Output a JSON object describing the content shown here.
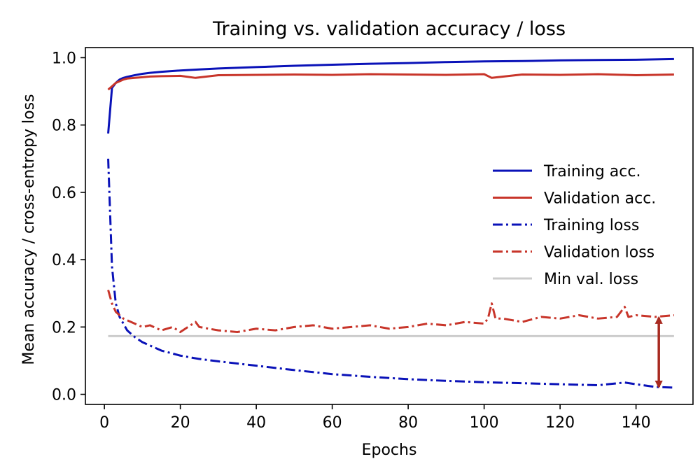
{
  "chart_data": {
    "type": "line",
    "title": "Training vs. validation accuracy / loss",
    "xlabel": "Epochs",
    "ylabel": "Mean accuracy / cross-entropy loss",
    "xlim": [
      -5,
      155
    ],
    "ylim": [
      -0.03,
      1.03
    ],
    "x_ticks": [
      0,
      20,
      40,
      60,
      80,
      100,
      120,
      140
    ],
    "y_ticks": [
      0.0,
      0.2,
      0.4,
      0.6,
      0.8,
      1.0
    ],
    "x_tick_labels": [
      "0",
      "20",
      "40",
      "60",
      "80",
      "100",
      "120",
      "140"
    ],
    "y_tick_labels": [
      "0.0",
      "0.2",
      "0.4",
      "0.6",
      "0.8",
      "1.0"
    ],
    "grid": false,
    "legend_position": "center-right",
    "colors": {
      "training": "#0a12b8",
      "validation": "#c8352a",
      "min_line": "#cccccc",
      "arrow": "#a82a20"
    },
    "series": [
      {
        "name": "Training acc.",
        "style": "solid",
        "color": "#0a12b8",
        "x": [
          1,
          2,
          3,
          4,
          5,
          6,
          8,
          10,
          12,
          15,
          20,
          25,
          30,
          40,
          50,
          60,
          70,
          80,
          90,
          100,
          110,
          120,
          130,
          140,
          145,
          150
        ],
        "y": [
          0.775,
          0.91,
          0.925,
          0.935,
          0.94,
          0.943,
          0.948,
          0.952,
          0.955,
          0.958,
          0.962,
          0.965,
          0.968,
          0.972,
          0.976,
          0.979,
          0.982,
          0.984,
          0.987,
          0.989,
          0.99,
          0.992,
          0.993,
          0.994,
          0.995,
          0.996
        ]
      },
      {
        "name": "Validation acc.",
        "style": "solid",
        "color": "#c8352a",
        "x": [
          1,
          2,
          3,
          4,
          5,
          6,
          8,
          10,
          12,
          15,
          20,
          24,
          30,
          40,
          50,
          60,
          70,
          80,
          90,
          100,
          102,
          110,
          120,
          130,
          140,
          150
        ],
        "y": [
          0.905,
          0.915,
          0.925,
          0.93,
          0.935,
          0.938,
          0.94,
          0.942,
          0.944,
          0.945,
          0.946,
          0.94,
          0.948,
          0.949,
          0.95,
          0.949,
          0.951,
          0.95,
          0.949,
          0.951,
          0.94,
          0.95,
          0.949,
          0.951,
          0.948,
          0.95
        ]
      },
      {
        "name": "Training loss",
        "style": "dashdot",
        "color": "#0a12b8",
        "x": [
          1,
          2,
          3,
          4,
          5,
          6,
          8,
          10,
          12,
          15,
          20,
          25,
          30,
          40,
          50,
          60,
          70,
          80,
          90,
          100,
          110,
          120,
          130,
          137,
          140,
          145,
          150
        ],
        "y": [
          0.7,
          0.38,
          0.27,
          0.23,
          0.21,
          0.19,
          0.17,
          0.155,
          0.145,
          0.13,
          0.115,
          0.105,
          0.098,
          0.085,
          0.072,
          0.06,
          0.052,
          0.045,
          0.04,
          0.036,
          0.033,
          0.03,
          0.027,
          0.035,
          0.03,
          0.022,
          0.02
        ]
      },
      {
        "name": "Validation loss",
        "style": "dashdot",
        "color": "#c8352a",
        "x": [
          1,
          2,
          3,
          4,
          5,
          6,
          8,
          10,
          12,
          15,
          18,
          20,
          24,
          25,
          30,
          35,
          40,
          45,
          50,
          55,
          60,
          65,
          70,
          75,
          80,
          85,
          90,
          95,
          100,
          101,
          102,
          103,
          105,
          110,
          115,
          120,
          125,
          130,
          135,
          137,
          138,
          140,
          145,
          150
        ],
        "y": [
          0.31,
          0.27,
          0.245,
          0.235,
          0.225,
          0.22,
          0.21,
          0.2,
          0.205,
          0.19,
          0.2,
          0.185,
          0.215,
          0.2,
          0.19,
          0.185,
          0.195,
          0.19,
          0.2,
          0.205,
          0.195,
          0.2,
          0.205,
          0.195,
          0.2,
          0.21,
          0.205,
          0.215,
          0.21,
          0.225,
          0.27,
          0.225,
          0.225,
          0.215,
          0.23,
          0.225,
          0.235,
          0.225,
          0.23,
          0.26,
          0.23,
          0.235,
          0.23,
          0.235
        ]
      },
      {
        "name": "Min val. loss",
        "style": "solid",
        "color": "#cccccc",
        "x": [
          1,
          150
        ],
        "y": [
          0.173,
          0.173
        ]
      }
    ],
    "annotations": [
      {
        "type": "double-arrow",
        "x": 146,
        "y_from": 0.022,
        "y_to": 0.228,
        "color": "#a82a20"
      }
    ]
  }
}
